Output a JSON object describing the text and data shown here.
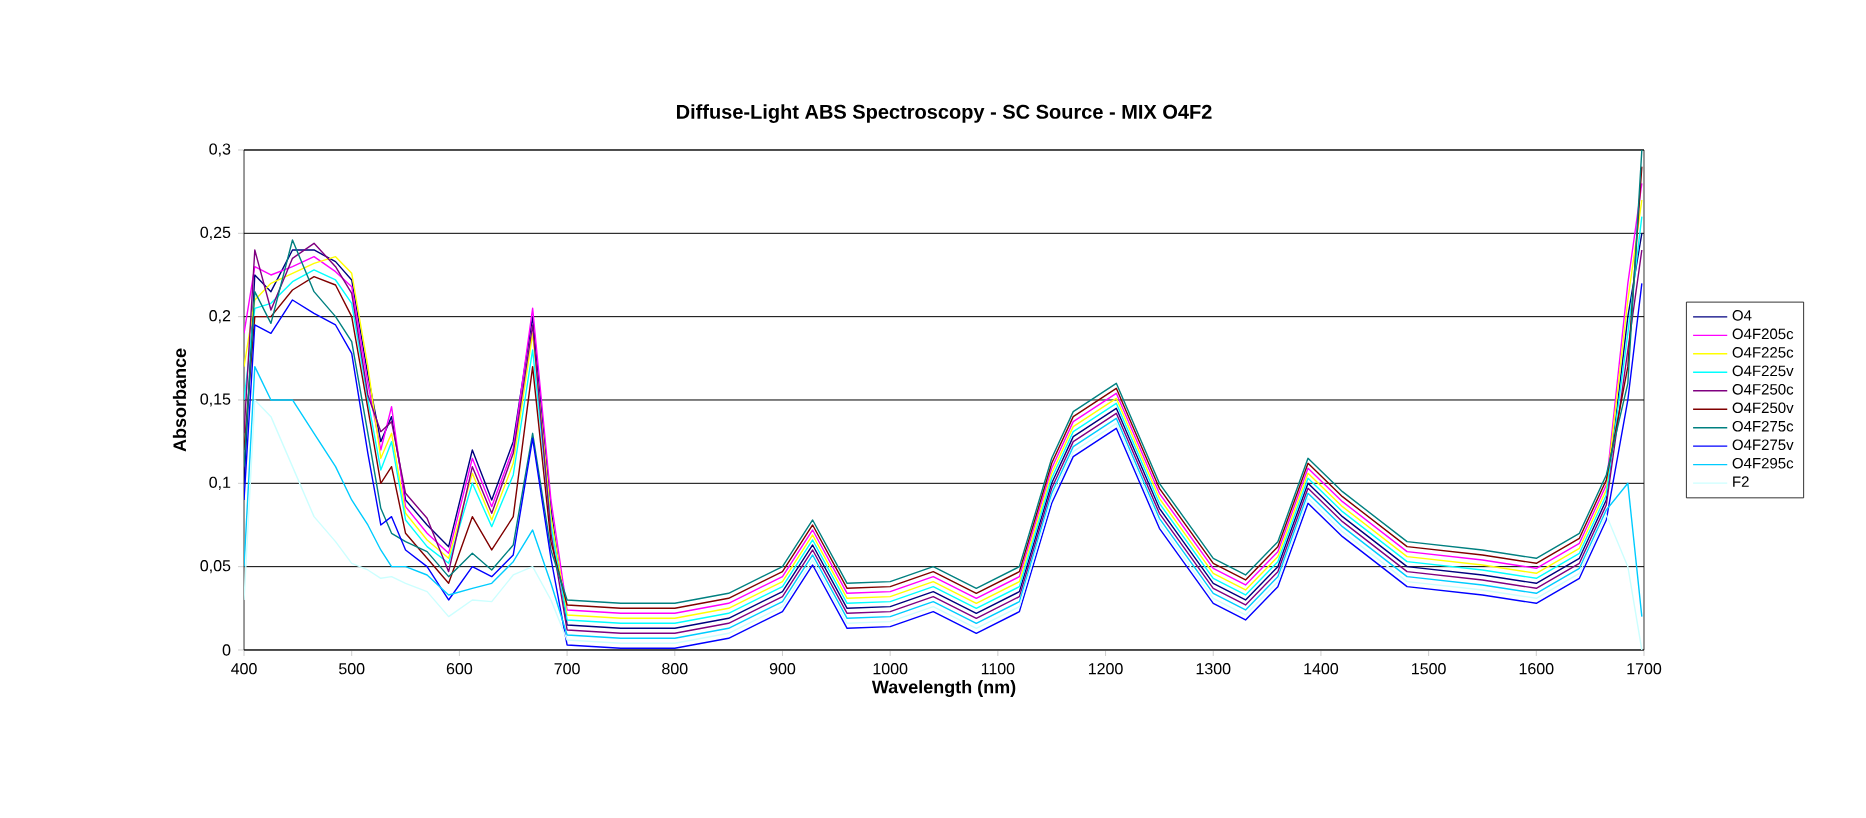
{
  "chart_data": {
    "type": "line",
    "title": "Diffuse-Light ABS Spectroscopy - SC Source - MIX O4F2",
    "xlabel": "Wavelength (nm)",
    "ylabel": "Absorbance",
    "x": [
      400,
      410,
      425,
      445,
      465,
      485,
      500,
      515,
      527,
      537,
      550,
      570,
      590,
      612,
      630,
      650,
      668,
      685,
      700,
      750,
      800,
      850,
      900,
      928,
      960,
      1000,
      1040,
      1080,
      1120,
      1150,
      1170,
      1210,
      1250,
      1300,
      1330,
      1360,
      1388,
      1420,
      1480,
      1550,
      1600,
      1640,
      1665,
      1685,
      1698
    ],
    "xlim": [
      400,
      1700
    ],
    "xticks": [
      400,
      500,
      600,
      700,
      800,
      900,
      1000,
      1100,
      1200,
      1300,
      1400,
      1500,
      1600,
      1700
    ],
    "ylim": [
      0,
      0.3
    ],
    "yticks": [
      {
        "value": 0,
        "label": "0"
      },
      {
        "value": 0.05,
        "label": "0,05"
      },
      {
        "value": 0.1,
        "label": "0,1"
      },
      {
        "value": 0.15,
        "label": "0,15"
      },
      {
        "value": 0.2,
        "label": "0,2"
      },
      {
        "value": 0.25,
        "label": "0,25"
      },
      {
        "value": 0.3,
        "label": "0,3"
      }
    ],
    "grid": "y",
    "legend": "right",
    "marker": "none",
    "line_style": "solid",
    "series": [
      {
        "name": "O4",
        "color": "#000080",
        "values": [
          0.1,
          0.225,
          0.215,
          0.24,
          0.24,
          0.233,
          0.222,
          0.165,
          0.125,
          0.14,
          0.09,
          0.075,
          0.062,
          0.12,
          0.09,
          0.125,
          0.2,
          0.085,
          0.015,
          0.013,
          0.013,
          0.019,
          0.035,
          0.063,
          0.025,
          0.026,
          0.035,
          0.022,
          0.035,
          0.1,
          0.128,
          0.145,
          0.085,
          0.04,
          0.03,
          0.05,
          0.1,
          0.08,
          0.05,
          0.045,
          0.04,
          0.055,
          0.09,
          0.2,
          0.25
        ]
      },
      {
        "name": "O4F205c",
        "color": "#ff00ff",
        "values": [
          0.19,
          0.23,
          0.225,
          0.23,
          0.236,
          0.227,
          0.218,
          0.16,
          0.12,
          0.146,
          0.086,
          0.07,
          0.058,
          0.115,
          0.086,
          0.121,
          0.205,
          0.09,
          0.024,
          0.022,
          0.022,
          0.028,
          0.044,
          0.072,
          0.034,
          0.035,
          0.044,
          0.031,
          0.044,
          0.109,
          0.137,
          0.154,
          0.094,
          0.049,
          0.039,
          0.059,
          0.109,
          0.089,
          0.059,
          0.054,
          0.049,
          0.064,
          0.099,
          0.22,
          0.28
        ]
      },
      {
        "name": "O4F225c",
        "color": "#ffff00",
        "values": [
          0.17,
          0.21,
          0.22,
          0.226,
          0.232,
          0.236,
          0.226,
          0.17,
          0.115,
          0.13,
          0.082,
          0.066,
          0.055,
          0.106,
          0.078,
          0.112,
          0.19,
          0.08,
          0.021,
          0.019,
          0.019,
          0.025,
          0.041,
          0.069,
          0.031,
          0.032,
          0.041,
          0.028,
          0.041,
          0.106,
          0.134,
          0.151,
          0.091,
          0.046,
          0.036,
          0.056,
          0.106,
          0.086,
          0.056,
          0.051,
          0.046,
          0.061,
          0.096,
          0.21,
          0.27
        ]
      },
      {
        "name": "O4F225v",
        "color": "#00ffff",
        "values": [
          0.15,
          0.205,
          0.208,
          0.221,
          0.228,
          0.222,
          0.208,
          0.15,
          0.108,
          0.125,
          0.078,
          0.062,
          0.052,
          0.1,
          0.074,
          0.105,
          0.18,
          0.075,
          0.018,
          0.016,
          0.016,
          0.022,
          0.038,
          0.066,
          0.028,
          0.029,
          0.038,
          0.025,
          0.038,
          0.103,
          0.131,
          0.148,
          0.088,
          0.043,
          0.033,
          0.053,
          0.103,
          0.083,
          0.053,
          0.048,
          0.043,
          0.058,
          0.093,
          0.19,
          0.26
        ]
      },
      {
        "name": "O4F250c",
        "color": "#800080",
        "values": [
          0.13,
          0.24,
          0.204,
          0.235,
          0.244,
          0.23,
          0.214,
          0.153,
          0.131,
          0.137,
          0.094,
          0.079,
          0.047,
          0.11,
          0.082,
          0.118,
          0.195,
          0.07,
          0.012,
          0.01,
          0.01,
          0.016,
          0.032,
          0.06,
          0.022,
          0.023,
          0.032,
          0.019,
          0.032,
          0.097,
          0.125,
          0.142,
          0.082,
          0.037,
          0.027,
          0.047,
          0.097,
          0.077,
          0.047,
          0.042,
          0.037,
          0.052,
          0.087,
          0.18,
          0.24
        ]
      },
      {
        "name": "O4F250v",
        "color": "#800000",
        "values": [
          0.12,
          0.2,
          0.2,
          0.216,
          0.224,
          0.219,
          0.2,
          0.145,
          0.1,
          0.11,
          0.07,
          0.055,
          0.04,
          0.08,
          0.06,
          0.08,
          0.17,
          0.065,
          0.027,
          0.025,
          0.025,
          0.031,
          0.047,
          0.075,
          0.037,
          0.038,
          0.047,
          0.034,
          0.047,
          0.112,
          0.14,
          0.157,
          0.097,
          0.052,
          0.042,
          0.062,
          0.112,
          0.092,
          0.062,
          0.057,
          0.052,
          0.067,
          0.102,
          0.17,
          0.29
        ]
      },
      {
        "name": "O4F275c",
        "color": "#008080",
        "values": [
          0.11,
          0.215,
          0.196,
          0.246,
          0.215,
          0.2,
          0.185,
          0.13,
          0.085,
          0.07,
          0.065,
          0.059,
          0.044,
          0.058,
          0.048,
          0.063,
          0.13,
          0.06,
          0.03,
          0.028,
          0.028,
          0.034,
          0.05,
          0.078,
          0.04,
          0.041,
          0.05,
          0.037,
          0.05,
          0.115,
          0.143,
          0.16,
          0.1,
          0.055,
          0.045,
          0.065,
          0.115,
          0.095,
          0.065,
          0.06,
          0.055,
          0.07,
          0.105,
          0.16,
          0.3
        ]
      },
      {
        "name": "O4F275v",
        "color": "#0000ff",
        "values": [
          0.09,
          0.195,
          0.19,
          0.21,
          0.202,
          0.195,
          0.178,
          0.118,
          0.075,
          0.08,
          0.06,
          0.05,
          0.03,
          0.05,
          0.044,
          0.057,
          0.127,
          0.055,
          0.003,
          0.001,
          0.001,
          0.007,
          0.023,
          0.051,
          0.013,
          0.014,
          0.023,
          0.01,
          0.023,
          0.088,
          0.116,
          0.133,
          0.073,
          0.028,
          0.018,
          0.038,
          0.088,
          0.068,
          0.038,
          0.033,
          0.028,
          0.043,
          0.078,
          0.15,
          0.22
        ]
      },
      {
        "name": "O4F295c",
        "color": "#00ccff",
        "values": [
          0.05,
          0.17,
          0.15,
          0.15,
          0.13,
          0.11,
          0.09,
          0.075,
          0.06,
          0.05,
          0.05,
          0.045,
          0.033,
          0.037,
          0.04,
          0.053,
          0.072,
          0.04,
          0.009,
          0.007,
          0.007,
          0.013,
          0.029,
          0.057,
          0.019,
          0.02,
          0.029,
          0.016,
          0.029,
          0.094,
          0.122,
          0.139,
          0.079,
          0.034,
          0.024,
          0.044,
          0.094,
          0.074,
          0.044,
          0.039,
          0.034,
          0.049,
          0.084,
          0.1,
          0.02
        ]
      },
      {
        "name": "F2",
        "color": "#ccffff",
        "values": [
          0.03,
          0.15,
          0.14,
          0.11,
          0.08,
          0.065,
          0.052,
          0.048,
          0.043,
          0.044,
          0.04,
          0.035,
          0.02,
          0.03,
          0.029,
          0.045,
          0.05,
          0.03,
          0.006,
          0.004,
          0.004,
          0.01,
          0.026,
          0.054,
          0.016,
          0.017,
          0.026,
          0.013,
          0.026,
          0.091,
          0.119,
          0.136,
          0.076,
          0.031,
          0.021,
          0.041,
          0.091,
          0.071,
          0.041,
          0.036,
          0.031,
          0.046,
          0.081,
          0.05,
          0
        ]
      }
    ]
  }
}
